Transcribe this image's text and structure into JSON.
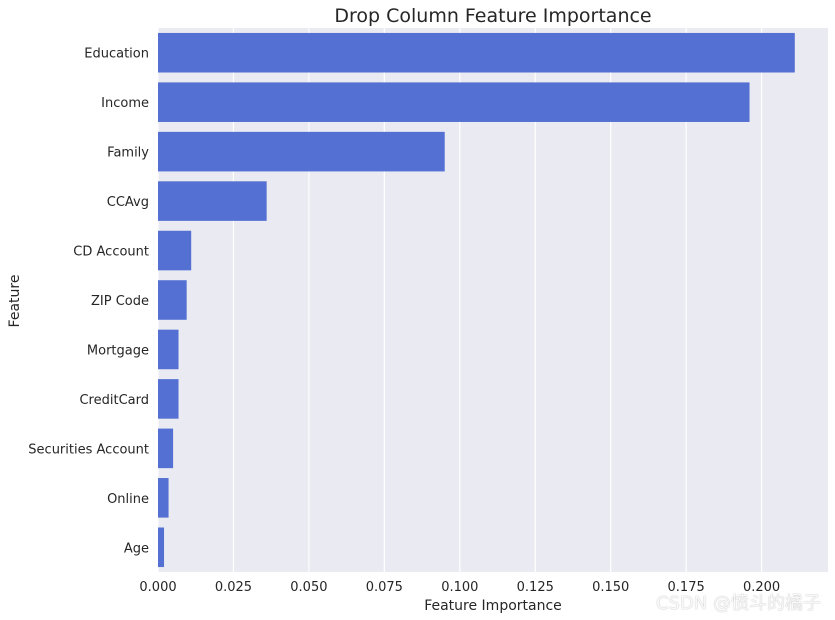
{
  "chart_data": {
    "type": "bar",
    "orientation": "horizontal",
    "title": "Drop Column Feature Importance",
    "xlabel": "Feature Importance",
    "ylabel": "Feature",
    "categories": [
      "Education",
      "Income",
      "Family",
      "CCAvg",
      "CD Account",
      "ZIP Code",
      "Mortgage",
      "CreditCard",
      "Securities Account",
      "Online",
      "Age"
    ],
    "values": [
      0.211,
      0.196,
      0.095,
      0.036,
      0.011,
      0.0095,
      0.0068,
      0.0068,
      0.005,
      0.0035,
      0.002
    ],
    "xlim": [
      0,
      0.222
    ],
    "xticks": [
      0.0,
      0.025,
      0.05,
      0.075,
      0.1,
      0.125,
      0.15,
      0.175,
      0.2
    ],
    "xtick_labels": [
      "0.000",
      "0.025",
      "0.050",
      "0.075",
      "0.100",
      "0.125",
      "0.150",
      "0.175",
      "0.200"
    ],
    "grid": true,
    "bar_color": "#5470d3",
    "background_color": "#eaeaf2"
  },
  "watermark": "CSDN @愤斗的橘子"
}
